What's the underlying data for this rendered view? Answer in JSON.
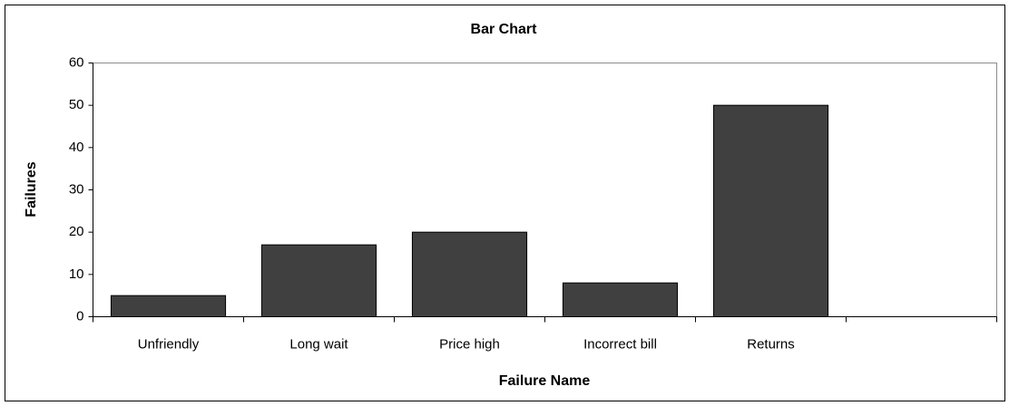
{
  "chart_data": {
    "type": "bar",
    "title": "Bar Chart",
    "x_label": "Failure Name",
    "y_label": "Failures",
    "categories": [
      "Unfriendly",
      "Long wait",
      "Price high",
      "Incorrect bill",
      "Returns",
      null
    ],
    "values": [
      5,
      17,
      20,
      8,
      50,
      null
    ],
    "color": "#404040",
    "ylim": [
      0,
      60
    ],
    "yticks": [
      0,
      10,
      20,
      30,
      40,
      50,
      60
    ],
    "grid": false
  }
}
